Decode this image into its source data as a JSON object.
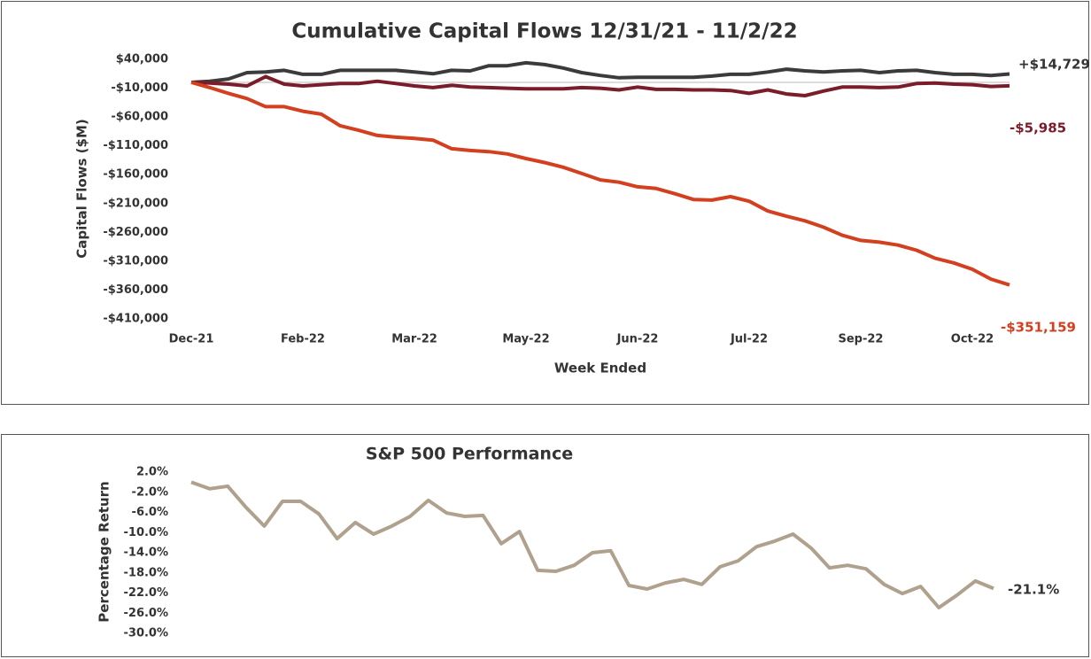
{
  "chart_data": [
    {
      "type": "line",
      "title": "Cumulative Capital Flows 12/31/21 - 11/2/22",
      "xlabel": "Week Ended",
      "ylabel": "Capital Flows ($M)",
      "categories": [
        "Dec-21",
        null,
        null,
        null,
        null,
        null,
        "Feb-22",
        null,
        null,
        null,
        null,
        null,
        "Mar-22",
        null,
        null,
        null,
        null,
        null,
        "May-22",
        null,
        null,
        null,
        null,
        null,
        "Jun-22",
        null,
        null,
        null,
        null,
        null,
        "Jul-22",
        null,
        null,
        null,
        null,
        null,
        "Sep-22",
        null,
        null,
        null,
        null,
        null,
        "Oct-22",
        null,
        null
      ],
      "ylim": [
        -410000,
        40000
      ],
      "yticks": [
        {
          "value": 40000,
          "label": "$40,000"
        },
        {
          "value": -10000,
          "label": "-$10,000"
        },
        {
          "value": -60000,
          "label": "-$60,000"
        },
        {
          "value": -110000,
          "label": "-$110,000"
        },
        {
          "value": -160000,
          "label": "-$160,000"
        },
        {
          "value": -210000,
          "label": "-$210,000"
        },
        {
          "value": -260000,
          "label": "-$260,000"
        },
        {
          "value": -310000,
          "label": "-$310,000"
        },
        {
          "value": -360000,
          "label": "-$360,000"
        },
        {
          "value": -410000,
          "label": "-$410,000"
        }
      ],
      "series": [
        {
          "color": "#3b3b3b",
          "end_label": "+$14,729",
          "values": [
            0,
            2000,
            6000,
            17000,
            18000,
            21000,
            14000,
            14000,
            21000,
            21000,
            21000,
            21000,
            18000,
            15000,
            21000,
            20000,
            29000,
            29000,
            34000,
            31000,
            25000,
            17000,
            12000,
            8000,
            9000,
            9000,
            9000,
            9000,
            11000,
            14000,
            14000,
            18000,
            23000,
            20000,
            18000,
            20000,
            21000,
            17000,
            20000,
            21000,
            17000,
            14000,
            14000,
            12000,
            14729
          ]
        },
        {
          "color": "#7b1c2a",
          "end_label": "-$5,985",
          "values": [
            0,
            -1000,
            -3000,
            -6000,
            10000,
            -3000,
            -6000,
            -4000,
            -2000,
            -2000,
            2000,
            -2000,
            -6000,
            -9000,
            -5000,
            -8000,
            -9000,
            -10000,
            -11000,
            -11000,
            -11000,
            -9000,
            -10000,
            -13000,
            -8000,
            -12000,
            -12000,
            -13000,
            -13000,
            -14000,
            -19000,
            -13000,
            -20000,
            -23000,
            -15000,
            -8000,
            -8000,
            -9000,
            -8000,
            -2000,
            -1000,
            -3000,
            -4000,
            -7000,
            -5985
          ]
        },
        {
          "color": "#d2401f",
          "end_label": "-$351,159",
          "values": [
            0,
            -9000,
            -19000,
            -28000,
            -42000,
            -42000,
            -50000,
            -55000,
            -75000,
            -83000,
            -92000,
            -95000,
            -97000,
            -100000,
            -115000,
            -118000,
            -120000,
            -124000,
            -132000,
            -139000,
            -147000,
            -158000,
            -169000,
            -173000,
            -181000,
            -184000,
            -193000,
            -203000,
            -204000,
            -198000,
            -206000,
            -223000,
            -232000,
            -240000,
            -251000,
            -265000,
            -274000,
            -277000,
            -282000,
            -291000,
            -305000,
            -313000,
            -324000,
            -341000,
            -351159
          ]
        }
      ]
    },
    {
      "type": "line",
      "title": "S&P 500 Performance",
      "ylabel": "Percentage Return",
      "ylim": [
        -30,
        2
      ],
      "yticks": [
        {
          "value": 2,
          "label": "2.0%"
        },
        {
          "value": -2,
          "label": "-2.0%"
        },
        {
          "value": -6,
          "label": "-6.0%"
        },
        {
          "value": -10,
          "label": "-10.0%"
        },
        {
          "value": -14,
          "label": "-14.0%"
        },
        {
          "value": -18,
          "label": "-18.0%"
        },
        {
          "value": -22,
          "label": "-22.0%"
        },
        {
          "value": -26,
          "label": "-26.0%"
        },
        {
          "value": -30,
          "label": "-30.0%"
        }
      ],
      "series": [
        {
          "color": "#b0a18e",
          "end_label": "-21.1%",
          "values": [
            0,
            -1.3,
            -0.8,
            -5.0,
            -8.7,
            -3.8,
            -3.8,
            -6.3,
            -11.2,
            -8.0,
            -10.3,
            -8.7,
            -6.8,
            -3.6,
            -6.1,
            -6.8,
            -6.6,
            -12.2,
            -9.8,
            -17.5,
            -17.7,
            -16.5,
            -14.0,
            -13.6,
            -20.5,
            -21.2,
            -20.0,
            -19.3,
            -20.3,
            -16.8,
            -15.6,
            -12.8,
            -11.7,
            -10.3,
            -13.1,
            -17.0,
            -16.5,
            -17.2,
            -20.3,
            -22.1,
            -20.7,
            -24.9,
            -22.4,
            -19.6,
            -21.1
          ]
        }
      ]
    }
  ]
}
